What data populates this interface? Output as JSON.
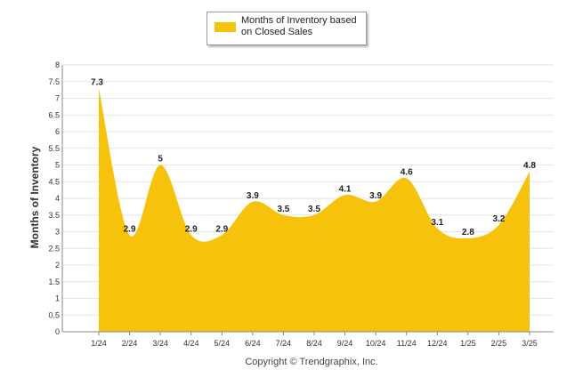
{
  "legend": {
    "label": "Months of Inventory based on Closed Sales"
  },
  "copyright": "Copyright © Trendgraphix, Inc.",
  "chart_data": {
    "type": "area",
    "title": "",
    "ylabel": "Months of Inventory",
    "xlabel": "",
    "categories": [
      "1/24",
      "2/24",
      "3/24",
      "4/24",
      "5/24",
      "6/24",
      "7/24",
      "8/24",
      "9/24",
      "10/24",
      "11/24",
      "12/24",
      "1/25",
      "2/25",
      "3/25"
    ],
    "series": [
      {
        "name": "Months of Inventory based on Closed Sales",
        "values": [
          7.3,
          2.9,
          5,
          2.9,
          2.9,
          3.9,
          3.5,
          3.5,
          4.1,
          3.9,
          4.6,
          3.1,
          2.8,
          3.2,
          4.8
        ]
      }
    ],
    "ylim": [
      0,
      8
    ],
    "yticks": [
      "0",
      "0.5",
      "1",
      "1.5",
      "2",
      "2.5",
      "3",
      "3.5",
      "4",
      "4.5",
      "5",
      "5.5",
      "6",
      "6.5",
      "7",
      "7.5",
      "8"
    ],
    "grid": true,
    "legend_position": "top-center",
    "color": "#f7c20b"
  }
}
